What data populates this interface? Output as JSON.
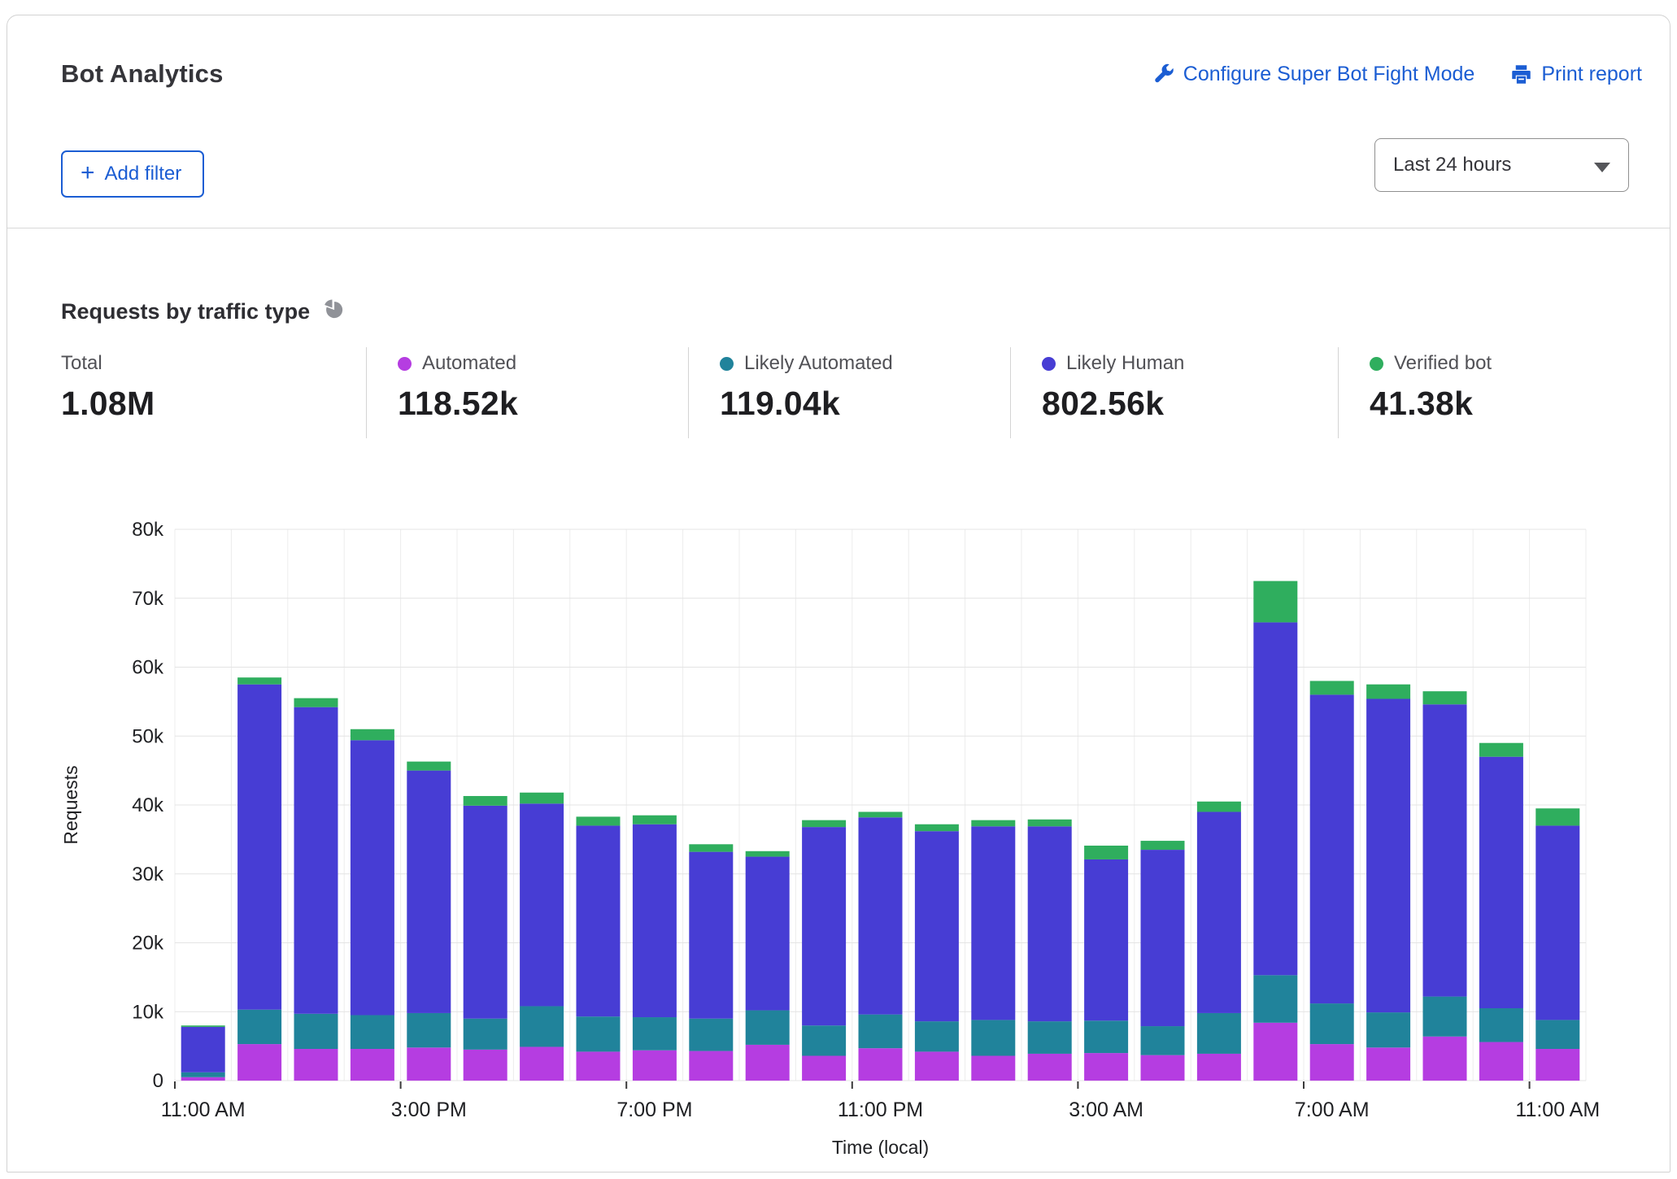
{
  "card": {
    "title": "Bot Analytics",
    "actions": {
      "configure_label": "Configure Super Bot Fight Mode",
      "print_label": "Print report"
    },
    "filter_button_label": "Add filter",
    "filter_button_plus": "+",
    "time_range_value": "Last 24 hours"
  },
  "section": {
    "title": "Requests by traffic type",
    "stats": [
      {
        "label": "Total",
        "value": "1.08M",
        "color": null
      },
      {
        "label": "Automated",
        "value": "118.52k",
        "color": "#b53de1"
      },
      {
        "label": "Likely Automated",
        "value": "119.04k",
        "color": "#20839b"
      },
      {
        "label": "Likely Human",
        "value": "802.56k",
        "color": "#473dd4"
      },
      {
        "label": "Verified bot",
        "value": "41.38k",
        "color": "#2fae5e"
      }
    ]
  },
  "colors": {
    "link_blue": "#1b5dd3",
    "grid_h": "#e4e4e4",
    "grid_v": "#ececec",
    "axis_text": "#202124",
    "icon_gray": "#909298"
  },
  "chart_data": {
    "type": "bar",
    "stacked": true,
    "title": "Requests by traffic type",
    "xlabel": "Time (local)",
    "ylabel": "Requests",
    "ylim": [
      0,
      80000
    ],
    "ytick_step": 10000,
    "ytick_labels": [
      "0",
      "10k",
      "20k",
      "30k",
      "40k",
      "50k",
      "60k",
      "70k",
      "80k"
    ],
    "grid": true,
    "legend_position": "top",
    "x": [
      "11:00 AM",
      "12:00 PM",
      "1:00 PM",
      "2:00 PM",
      "3:00 PM",
      "4:00 PM",
      "5:00 PM",
      "6:00 PM",
      "7:00 PM",
      "8:00 PM",
      "9:00 PM",
      "10:00 PM",
      "11:00 PM",
      "12:00 AM",
      "1:00 AM",
      "2:00 AM",
      "3:00 AM",
      "4:00 AM",
      "5:00 AM",
      "6:00 AM",
      "7:00 AM",
      "8:00 AM",
      "9:00 AM",
      "10:00 AM",
      "11:00 AM"
    ],
    "xtick_indices": [
      0,
      4,
      8,
      12,
      16,
      20,
      24
    ],
    "series": [
      {
        "name": "Automated",
        "color": "#b53de1",
        "values": [
          500,
          5300,
          4600,
          4600,
          4800,
          4500,
          4900,
          4200,
          4400,
          4300,
          5200,
          3600,
          4700,
          4200,
          3600,
          3900,
          4000,
          3700,
          3900,
          8400,
          5300,
          4800,
          6400,
          5600,
          4600
        ]
      },
      {
        "name": "Likely Automated",
        "color": "#20839b",
        "values": [
          700,
          5000,
          5100,
          4900,
          5000,
          4500,
          5900,
          5100,
          4800,
          4700,
          5000,
          4400,
          4900,
          4400,
          5200,
          4700,
          4700,
          4200,
          5900,
          6900,
          5900,
          5100,
          5800,
          4900,
          4200
        ]
      },
      {
        "name": "Likely Human",
        "color": "#473dd4",
        "values": [
          6600,
          47200,
          44500,
          39900,
          35200,
          30900,
          29400,
          27700,
          28000,
          24200,
          22300,
          28800,
          28600,
          27600,
          28100,
          28300,
          23400,
          25600,
          29200,
          51200,
          44800,
          45500,
          42400,
          36500,
          28200
        ]
      },
      {
        "name": "Verified bot",
        "color": "#2fae5e",
        "values": [
          200,
          1000,
          1300,
          1600,
          1300,
          1400,
          1600,
          1300,
          1300,
          1100,
          800,
          1000,
          800,
          1000,
          900,
          1000,
          2000,
          1300,
          1500,
          6000,
          2000,
          2100,
          1900,
          2000,
          2500
        ]
      }
    ]
  }
}
